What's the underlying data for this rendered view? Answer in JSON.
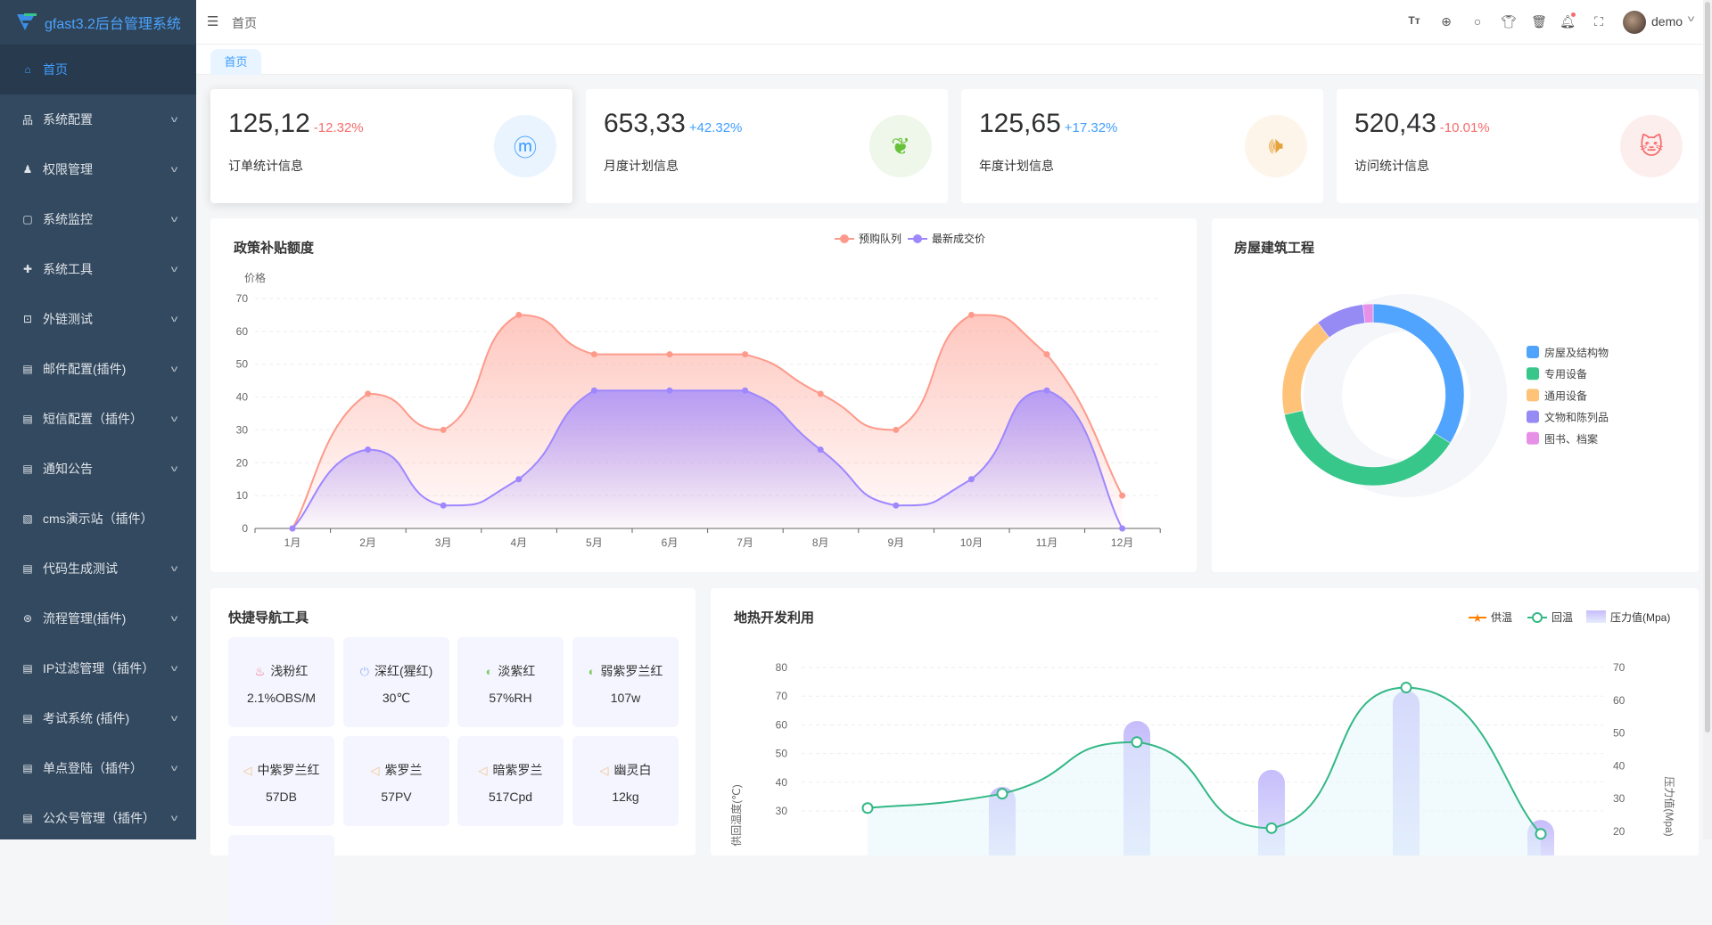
{
  "app": {
    "title": "gfast3.2后台管理系统"
  },
  "sidebar": {
    "items": [
      {
        "label": "首页",
        "icon": "home-icon",
        "glyph": "⌂",
        "active": true,
        "expand": false
      },
      {
        "label": "系统配置",
        "icon": "sitemap-icon",
        "glyph": "品",
        "expand": true
      },
      {
        "label": "权限管理",
        "icon": "user-icon",
        "glyph": "♟",
        "expand": true
      },
      {
        "label": "系统监控",
        "icon": "monitor-icon",
        "glyph": "▢",
        "expand": true
      },
      {
        "label": "系统工具",
        "icon": "puzzle-icon",
        "glyph": "✚",
        "expand": true
      },
      {
        "label": "外链测试",
        "icon": "link-icon",
        "glyph": "⊡",
        "expand": true
      },
      {
        "label": "邮件配置(插件)",
        "icon": "menu-icon",
        "glyph": "▤",
        "expand": true
      },
      {
        "label": "短信配置（插件）",
        "icon": "menu-icon",
        "glyph": "▤",
        "expand": true
      },
      {
        "label": "通知公告",
        "icon": "menu-icon",
        "glyph": "▤",
        "expand": true
      },
      {
        "label": "cms演示站（插件）",
        "icon": "document-search-icon",
        "glyph": "▧",
        "expand": false
      },
      {
        "label": "代码生成测试",
        "icon": "menu-icon",
        "glyph": "▤",
        "expand": true
      },
      {
        "label": "流程管理(插件)",
        "icon": "flow-icon",
        "glyph": "⊛",
        "expand": true
      },
      {
        "label": "IP过滤管理（插件）",
        "icon": "menu-icon",
        "glyph": "▤",
        "expand": true
      },
      {
        "label": "考试系统 (插件)",
        "icon": "menu-icon",
        "glyph": "▤",
        "expand": true
      },
      {
        "label": "单点登陆（插件）",
        "icon": "menu-icon",
        "glyph": "▤",
        "expand": true
      },
      {
        "label": "公众号管理（插件）",
        "icon": "menu-icon",
        "glyph": "▤",
        "expand": true
      }
    ]
  },
  "header": {
    "breadcrumb": "首页",
    "user": "demo",
    "icons": [
      "font-size-icon",
      "locale-icon",
      "search-icon",
      "theme-icon",
      "trash-icon",
      "bell-icon",
      "fullscreen-icon"
    ]
  },
  "tabs": [
    {
      "label": "首页",
      "active": true
    }
  ],
  "stats": [
    {
      "value": "125,12",
      "change": "-12.32%",
      "change_color": "#f56c6c",
      "label": "订单统计信息",
      "icon": "meetup-icon",
      "icon_color": "#409eff",
      "bg": "#eaf4ff"
    },
    {
      "value": "653,33",
      "change": "+42.32%",
      "change_color": "#409eff",
      "label": "月度计划信息",
      "icon": "china-map-icon",
      "icon_color": "#67c23a",
      "bg": "#eef7ea"
    },
    {
      "value": "125,65",
      "change": "+17.32%",
      "change_color": "#409eff",
      "label": "年度计划信息",
      "icon": "megaphone-icon",
      "icon_color": "#e6a23c",
      "bg": "#fdf5ea"
    },
    {
      "value": "520,43",
      "change": "-10.01%",
      "change_color": "#f56c6c",
      "label": "访问统计信息",
      "icon": "github-icon",
      "icon_color": "#f56c6c",
      "bg": "#fdeeee"
    }
  ],
  "policy_card": {
    "title": "政策补贴额度"
  },
  "house_card": {
    "title": "房屋建筑工程"
  },
  "nav_card": {
    "title": "快捷导航工具",
    "tiles": [
      {
        "label": "浅粉红",
        "value": "2.1%OBS/M",
        "icon": "cake-icon",
        "glyph": "♨",
        "color": "#f56c8c"
      },
      {
        "label": "深红(猩红)",
        "value": "30℃",
        "icon": "power-icon",
        "glyph": "⏻",
        "color": "#9db8ff"
      },
      {
        "label": "淡紫红",
        "value": "57%RH",
        "icon": "drops-icon",
        "glyph": "◐",
        "color": "#7ccc63"
      },
      {
        "label": "弱紫罗兰红",
        "value": "107w",
        "icon": "drops-icon",
        "glyph": "◐",
        "color": "#7ccc63"
      },
      {
        "label": "中紫罗兰红",
        "value": "57DB",
        "icon": "speaker-icon",
        "glyph": "◁",
        "color": "#f5c28a"
      },
      {
        "label": "紫罗兰",
        "value": "57PV",
        "icon": "speaker-icon",
        "glyph": "◁",
        "color": "#f5c28a"
      },
      {
        "label": "暗紫罗兰",
        "value": "517Cpd",
        "icon": "speaker-icon",
        "glyph": "◁",
        "color": "#f5c28a"
      },
      {
        "label": "幽灵白",
        "value": "12kg",
        "icon": "speaker-icon",
        "glyph": "◁",
        "color": "#f5c28a"
      }
    ]
  },
  "geo_card": {
    "title": "地热开发利用"
  },
  "chart_data": [
    {
      "type": "line",
      "title": "政策补贴额度",
      "ylabel": "价格",
      "ylim": [
        0,
        70
      ],
      "yticks": [
        0,
        10,
        20,
        30,
        40,
        50,
        60,
        70
      ],
      "grid": true,
      "legend": "top-right",
      "smooth": true,
      "categories": [
        "1月",
        "2月",
        "3月",
        "4月",
        "5月",
        "6月",
        "7月",
        "8月",
        "9月",
        "10月",
        "11月",
        "12月"
      ],
      "series": [
        {
          "name": "预购队列",
          "color": "#fe9a8b",
          "values": [
            0,
            41,
            30,
            65,
            53,
            53,
            53,
            41,
            30,
            65,
            53,
            10
          ]
        },
        {
          "name": "最新成交价",
          "color": "#9e87ff",
          "values": [
            0,
            24,
            7,
            15,
            42,
            42,
            42,
            24,
            7,
            15,
            42,
            0
          ]
        }
      ]
    },
    {
      "type": "pie",
      "title": "房屋建筑工程",
      "donut": true,
      "legend": "right",
      "slices": [
        {
          "name": "房屋及结构物",
          "value": 33.9,
          "color": "#51a4fd"
        },
        {
          "name": "专用设备",
          "value": 37.6,
          "color": "#37c78b"
        },
        {
          "name": "通用设备",
          "value": 18.1,
          "color": "#fec279"
        },
        {
          "name": "文物和陈列品",
          "value": 8.6,
          "color": "#968af5"
        },
        {
          "name": "图书、档案",
          "value": 1.8,
          "color": "#e790e8"
        }
      ]
    },
    {
      "type": "line",
      "title": "地热开发利用",
      "legend": "top-right",
      "grid": true,
      "y_left": {
        "label": "供回温度(℃)",
        "ticks": [
          30,
          40,
          50,
          60,
          70,
          80
        ]
      },
      "y_right": {
        "label": "压力值(Mpa)",
        "ticks": [
          20,
          30,
          40,
          50,
          60,
          70
        ]
      },
      "series": [
        {
          "name": "供温",
          "color": "#fe8104",
          "values": []
        },
        {
          "name": "回温",
          "color": "#33b885",
          "axis": "left",
          "values": [
            31,
            36,
            54,
            24,
            73,
            22
          ]
        },
        {
          "name": "压力值(Mpa)",
          "type": "bar",
          "color": "#c9c4fb",
          "axis": "right",
          "values": [
            null,
            33.6,
            53.7,
            38.8,
            62.9,
            23.5
          ]
        }
      ]
    }
  ]
}
